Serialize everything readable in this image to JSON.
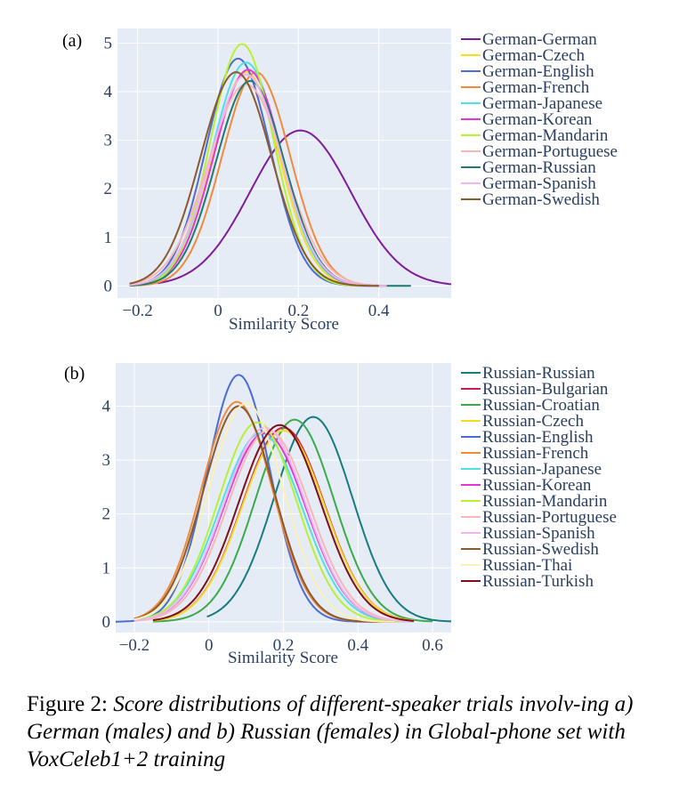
{
  "chart_data": [
    {
      "type": "line",
      "panel_label": "(a)",
      "xlabel": "Similarity Score",
      "ylabel": "",
      "xlim": [
        -0.25,
        0.58
      ],
      "ylim": [
        -0.25,
        5.3
      ],
      "xticks": [
        -0.2,
        0,
        0.2,
        0.4
      ],
      "xtick_labels": [
        "−0.2",
        "0",
        "0.2",
        "0.4"
      ],
      "yticks": [
        0,
        1,
        2,
        3,
        4,
        5
      ],
      "ytick_labels": [
        "0",
        "1",
        "2",
        "3",
        "4",
        "5"
      ],
      "grid": true,
      "legend_position": "right",
      "series": [
        {
          "name": "German-German",
          "color": "#7d1d9a",
          "mean": 0.205,
          "sd": 0.125,
          "peak": 3.2,
          "x_range": [
            -0.15,
            0.58
          ]
        },
        {
          "name": "German-Czech",
          "color": "#f5dd23",
          "mean": 0.07,
          "sd": 0.083,
          "peak": 4.4,
          "x_range": [
            -0.22,
            0.42
          ]
        },
        {
          "name": "German-English",
          "color": "#4a6cd3",
          "mean": 0.05,
          "sd": 0.08,
          "peak": 4.68,
          "x_range": [
            -0.22,
            0.38
          ]
        },
        {
          "name": "German-French",
          "color": "#f28a3c",
          "mean": 0.095,
          "sd": 0.085,
          "peak": 4.4,
          "x_range": [
            -0.22,
            0.42
          ]
        },
        {
          "name": "German-Japanese",
          "color": "#4ce0e8",
          "mean": 0.07,
          "sd": 0.085,
          "peak": 4.6,
          "x_range": [
            -0.22,
            0.4
          ]
        },
        {
          "name": "German-Korean",
          "color": "#e535d7",
          "mean": 0.075,
          "sd": 0.085,
          "peak": 4.45,
          "x_range": [
            -0.2,
            0.4
          ]
        },
        {
          "name": "German-Mandarin",
          "color": "#b7f034",
          "mean": 0.06,
          "sd": 0.078,
          "peak": 4.98,
          "x_range": [
            -0.2,
            0.36
          ]
        },
        {
          "name": "German-Portuguese",
          "color": "#f7b7b7",
          "mean": 0.07,
          "sd": 0.095,
          "peak": 4.15,
          "x_range": [
            -0.22,
            0.42
          ]
        },
        {
          "name": "German-Russian",
          "color": "#1d7a6f",
          "mean": 0.08,
          "sd": 0.085,
          "peak": 4.22,
          "x_range": [
            -0.22,
            0.48
          ]
        },
        {
          "name": "German-Spanish",
          "color": "#f0b4ef",
          "mean": 0.07,
          "sd": 0.088,
          "peak": 4.35,
          "x_range": [
            -0.22,
            0.42
          ]
        },
        {
          "name": "German-Swedish",
          "color": "#8a5a2b",
          "mean": 0.045,
          "sd": 0.088,
          "peak": 4.4,
          "x_range": [
            -0.22,
            0.4
          ]
        }
      ]
    },
    {
      "type": "line",
      "panel_label": "(b)",
      "xlabel": "Similarity Score",
      "ylabel": "",
      "xlim": [
        -0.25,
        0.65
      ],
      "ylim": [
        -0.2,
        4.8
      ],
      "xticks": [
        -0.2,
        0,
        0.2,
        0.4,
        0.6
      ],
      "xtick_labels": [
        "−0.2",
        "0",
        "0.2",
        "0.4",
        "0.6"
      ],
      "yticks": [
        0,
        1,
        2,
        3,
        4
      ],
      "ytick_labels": [
        "0",
        "1",
        "2",
        "3",
        "4"
      ],
      "grid": true,
      "legend_position": "right",
      "series": [
        {
          "name": "Russian-Russian",
          "color": "#167c80",
          "mean": 0.28,
          "sd": 0.105,
          "peak": 3.8,
          "x_range": [
            -0.005,
            0.65
          ]
        },
        {
          "name": "Russian-Bulgarian",
          "color": "#c41e4a",
          "mean": 0.2,
          "sd": 0.11,
          "peak": 3.6,
          "x_range": [
            -0.15,
            0.55
          ]
        },
        {
          "name": "Russian-Croatian",
          "color": "#3aaa4a",
          "mean": 0.23,
          "sd": 0.105,
          "peak": 3.75,
          "x_range": [
            -0.15,
            0.6
          ]
        },
        {
          "name": "Russian-Czech",
          "color": "#f5dd23",
          "mean": 0.2,
          "sd": 0.11,
          "peak": 3.55,
          "x_range": [
            -0.15,
            0.55
          ]
        },
        {
          "name": "Russian-English",
          "color": "#4a6cd3",
          "mean": 0.08,
          "sd": 0.085,
          "peak": 4.58,
          "x_range": [
            -0.25,
            0.45
          ]
        },
        {
          "name": "Russian-French",
          "color": "#f28a3c",
          "mean": 0.075,
          "sd": 0.095,
          "peak": 4.08,
          "x_range": [
            -0.2,
            0.5
          ]
        },
        {
          "name": "Russian-Japanese",
          "color": "#4ce0e8",
          "mean": 0.14,
          "sd": 0.11,
          "peak": 3.5,
          "x_range": [
            -0.2,
            0.55
          ]
        },
        {
          "name": "Russian-Korean",
          "color": "#e535d7",
          "mean": 0.15,
          "sd": 0.11,
          "peak": 3.5,
          "x_range": [
            -0.2,
            0.55
          ]
        },
        {
          "name": "Russian-Mandarin",
          "color": "#b7f034",
          "mean": 0.13,
          "sd": 0.105,
          "peak": 3.7,
          "x_range": [
            -0.2,
            0.52
          ]
        },
        {
          "name": "Russian-Portuguese",
          "color": "#f7b7b7",
          "mean": 0.16,
          "sd": 0.11,
          "peak": 3.55,
          "x_range": [
            -0.2,
            0.55
          ]
        },
        {
          "name": "Russian-Spanish",
          "color": "#f0b4ef",
          "mean": 0.15,
          "sd": 0.11,
          "peak": 3.6,
          "x_range": [
            -0.2,
            0.55
          ]
        },
        {
          "name": "Russian-Swedish",
          "color": "#8a5a2b",
          "mean": 0.08,
          "sd": 0.095,
          "peak": 4.0,
          "x_range": [
            -0.2,
            0.5
          ]
        },
        {
          "name": "Russian-Thai",
          "color": "#fbf1b5",
          "mean": 0.1,
          "sd": 0.1,
          "peak": 4.05,
          "x_range": [
            -0.2,
            0.5
          ]
        },
        {
          "name": "Russian-Turkish",
          "color": "#7d0f1a",
          "mean": 0.19,
          "sd": 0.11,
          "peak": 3.65,
          "x_range": [
            -0.15,
            0.55
          ]
        }
      ]
    }
  ],
  "caption": {
    "label": "Figure 2: ",
    "text": "Score distributions of different-speaker trials involv-ing a) German (males) and b) Russian (females) in Global-phone set with VoxCeleb1+2 training"
  }
}
